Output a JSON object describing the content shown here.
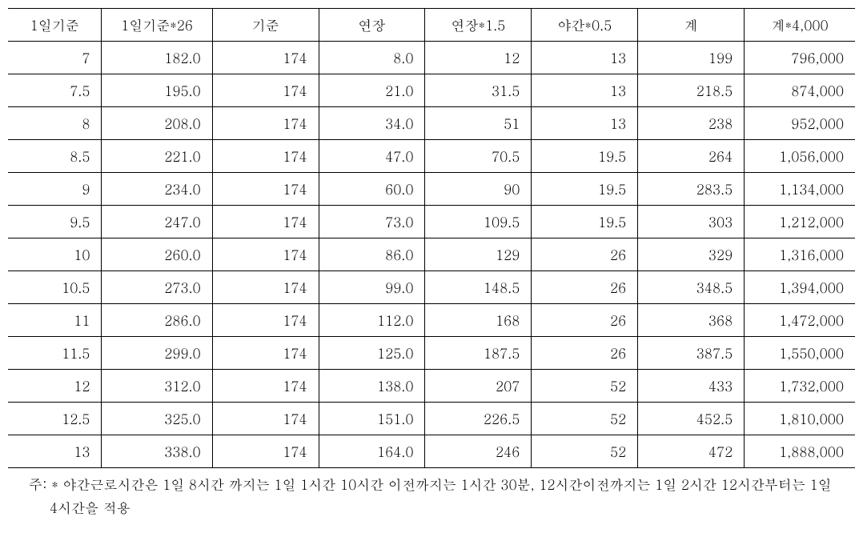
{
  "table": {
    "type": "table",
    "columns": [
      {
        "label": "1일기준",
        "width": "11%",
        "align": "right"
      },
      {
        "label": "1일기준*26",
        "width": "13%",
        "align": "right"
      },
      {
        "label": "기준",
        "width": "12.5%",
        "align": "right"
      },
      {
        "label": "연장",
        "width": "12.5%",
        "align": "right"
      },
      {
        "label": "연장*1.5",
        "width": "12.5%",
        "align": "right"
      },
      {
        "label": "야간*0.5",
        "width": "12.5%",
        "align": "right"
      },
      {
        "label": "계",
        "width": "12.5%",
        "align": "right"
      },
      {
        "label": "계*4,000",
        "width": "13%",
        "align": "right"
      }
    ],
    "rows": [
      [
        "7",
        "182.0",
        "174",
        "8.0",
        "12",
        "13",
        "199",
        "796,000"
      ],
      [
        "7.5",
        "195.0",
        "174",
        "21.0",
        "31.5",
        "13",
        "218.5",
        "874,000"
      ],
      [
        "8",
        "208.0",
        "174",
        "34.0",
        "51",
        "13",
        "238",
        "952,000"
      ],
      [
        "8.5",
        "221.0",
        "174",
        "47.0",
        "70.5",
        "19.5",
        "264",
        "1,056,000"
      ],
      [
        "9",
        "234.0",
        "174",
        "60.0",
        "90",
        "19.5",
        "283.5",
        "1,134,000"
      ],
      [
        "9.5",
        "247.0",
        "174",
        "73.0",
        "109.5",
        "19.5",
        "303",
        "1,212,000"
      ],
      [
        "10",
        "260.0",
        "174",
        "86.0",
        "129",
        "26",
        "329",
        "1,316,000"
      ],
      [
        "10.5",
        "273.0",
        "174",
        "99.0",
        "148.5",
        "26",
        "348.5",
        "1,394,000"
      ],
      [
        "11",
        "286.0",
        "174",
        "112.0",
        "168",
        "26",
        "368",
        "1,472,000"
      ],
      [
        "11.5",
        "299.0",
        "174",
        "125.0",
        "187.5",
        "26",
        "387.5",
        "1,550,000"
      ],
      [
        "12",
        "312.0",
        "174",
        "138.0",
        "207",
        "52",
        "433",
        "1,732,000"
      ],
      [
        "12.5",
        "325.0",
        "174",
        "151.0",
        "226.5",
        "52",
        "452.5",
        "1,810,000"
      ],
      [
        "13",
        "338.0",
        "174",
        "164.0",
        "246",
        "52",
        "472",
        "1,888,000"
      ]
    ],
    "styling": {
      "border_color": "#000000",
      "top_border_width": 1.5,
      "bottom_border_width": 1.5,
      "inner_border_width": 1,
      "background_color": "#ffffff",
      "font_size": 17,
      "text_color": "#000000",
      "header_align": "center",
      "cell_align": "right",
      "cell_padding": "8px 14px 8px 6px"
    }
  },
  "footnote": {
    "prefix": "주: *",
    "text": "주: * 야간근로시간은 1일 8시간 까지는 1일 1시간 10시간 이전까지는 1시간 30분, 12시간이전까지는 1일 2시간 12시간부터는 1일 4시간을 적용",
    "font_size": 17,
    "text_color": "#000000"
  }
}
